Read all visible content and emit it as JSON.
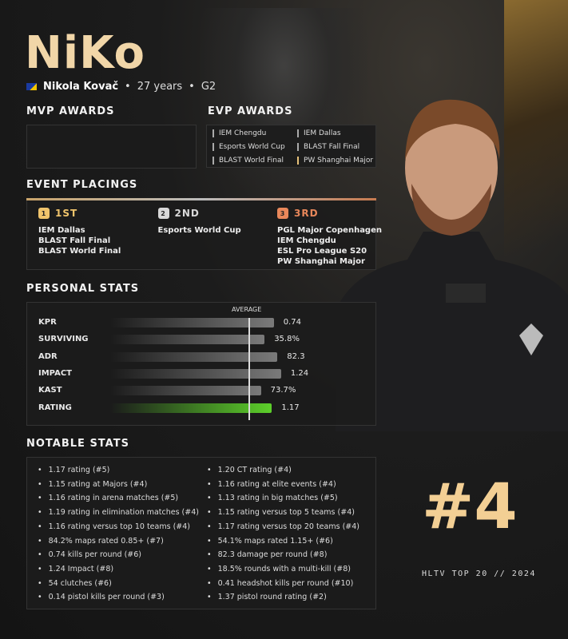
{
  "player": {
    "nickname": "NiKo",
    "full_name": "Nikola Kovač",
    "age": "27 years",
    "team": "G2",
    "country_flag": "bosnia-flag"
  },
  "colors": {
    "accent": "#f1d6a8",
    "rating_bar": "#5ccf2a",
    "first": "#f0c46c",
    "second": "#d8d8d8",
    "third": "#e8875a"
  },
  "mvp": {
    "title": "MVP AWARDS",
    "items": []
  },
  "evp": {
    "title": "EVP AWARDS",
    "items": [
      {
        "label": "IEM Chengdu",
        "highlight": false
      },
      {
        "label": "IEM Dallas",
        "highlight": false
      },
      {
        "label": "Esports World Cup",
        "highlight": false
      },
      {
        "label": "BLAST Fall Final",
        "highlight": false
      },
      {
        "label": "BLAST World Final",
        "highlight": false
      },
      {
        "label": "PW Shanghai Major",
        "highlight": true
      }
    ]
  },
  "placings": {
    "title": "EVENT PLACINGS",
    "columns": [
      {
        "medal": "1",
        "label": "1ST",
        "events": [
          "IEM Dallas",
          "BLAST Fall Final",
          "BLAST World Final"
        ]
      },
      {
        "medal": "2",
        "label": "2ND",
        "events": [
          "Esports World Cup"
        ]
      },
      {
        "medal": "3",
        "label": "3RD",
        "events": [
          "PGL Major Copenhagen",
          "IEM Chengdu",
          "ESL Pro League S20",
          "PW Shanghai Major"
        ]
      }
    ]
  },
  "personal": {
    "title": "PERSONAL STATS",
    "average_label": "AVERAGE",
    "average_level": 0.75,
    "stats": [
      {
        "label": "KPR",
        "value": "0.74",
        "level": 0.89
      },
      {
        "label": "SURVIVING",
        "value": "35.8%",
        "level": 0.84
      },
      {
        "label": "ADR",
        "value": "82.3",
        "level": 0.91
      },
      {
        "label": "IMPACT",
        "value": "1.24",
        "level": 0.93
      },
      {
        "label": "KAST",
        "value": "73.7%",
        "level": 0.82
      },
      {
        "label": "RATING",
        "value": "1.17",
        "level": 0.88
      }
    ]
  },
  "notable": {
    "title": "NOTABLE STATS",
    "left": [
      "1.17 rating (#5)",
      "1.15 rating at Majors (#4)",
      "1.16 rating in arena matches (#5)",
      "1.19 rating in elimination matches (#4)",
      "1.16 rating versus top 10 teams (#4)",
      "84.2% maps rated 0.85+ (#7)",
      "0.74 kills per round (#6)",
      "1.24 Impact (#8)",
      "54 clutches (#6)",
      "0.14 pistol kills per round (#3)"
    ],
    "right": [
      "1.20 CT rating (#4)",
      "1.16 rating at elite events (#4)",
      "1.13 rating in big matches (#5)",
      "1.15 rating versus top 5 teams (#4)",
      "1.17 rating versus top 20 teams (#4)",
      "54.1% maps rated 1.15+ (#6)",
      "82.3 damage per round (#8)",
      "18.5% rounds with a multi-kill (#8)",
      "0.41 headshot kills per round (#10)",
      "1.37 pistol round rating (#2)"
    ]
  },
  "ranking": {
    "rank": "#4",
    "footer": "HLTV TOP 20 // 2024"
  }
}
